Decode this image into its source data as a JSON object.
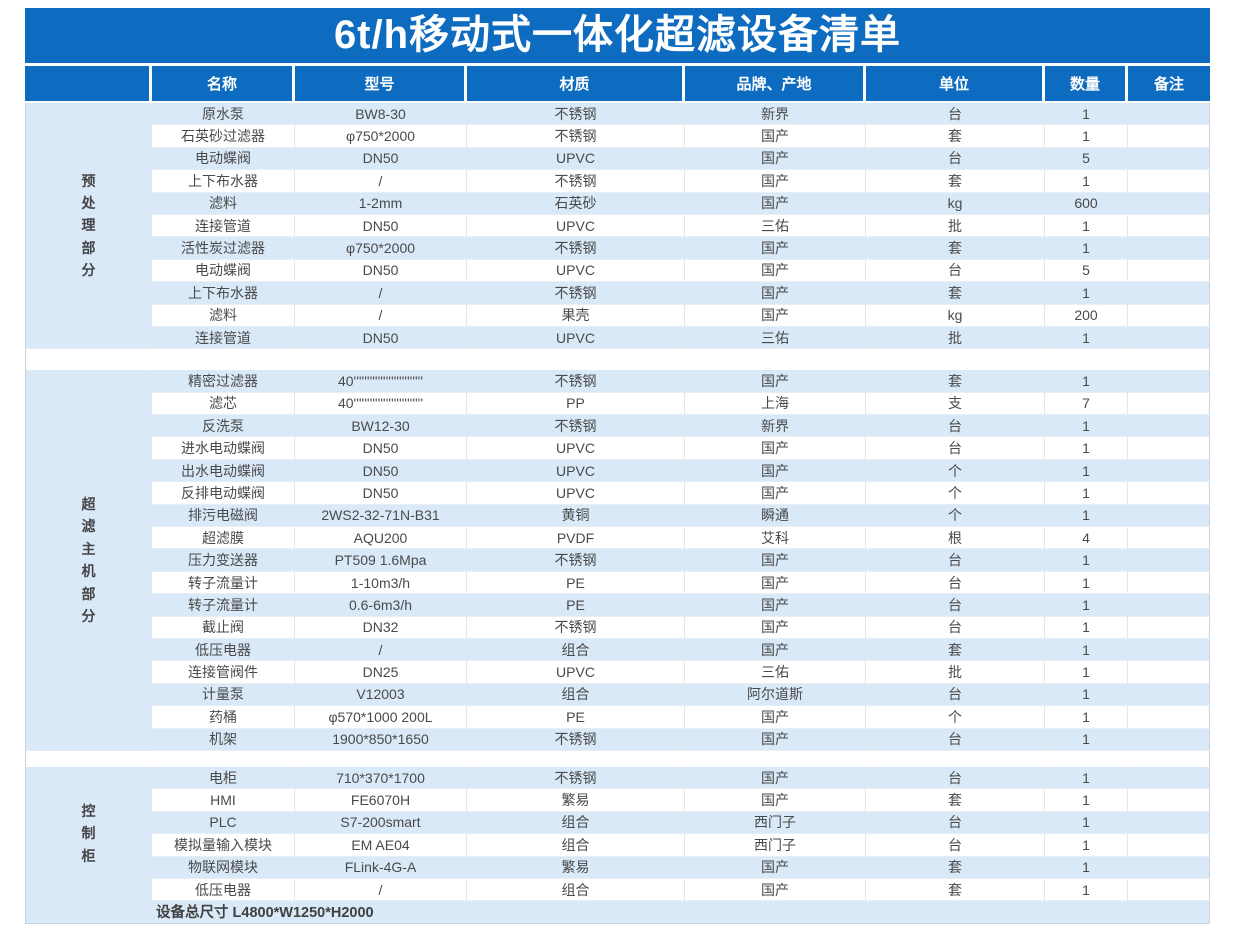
{
  "title": "6t/h移动式一体化超滤设备清单",
  "columns": [
    "名称",
    "型号",
    "材质",
    "品牌、产地",
    "单位",
    "数量",
    "备注"
  ],
  "sections": [
    {
      "label": "预处理部分",
      "rows": [
        [
          "原水泵",
          "BW8-30",
          "不锈钢",
          "新界",
          "台",
          "1",
          ""
        ],
        [
          "石英砂过滤器",
          "φ750*2000",
          "不锈钢",
          "国产",
          "套",
          "1",
          ""
        ],
        [
          "电动蝶阀",
          "DN50",
          "UPVC",
          "国产",
          "台",
          "5",
          ""
        ],
        [
          "上下布水器",
          "/",
          "不锈钢",
          "国产",
          "套",
          "1",
          ""
        ],
        [
          "滤料",
          "1-2mm",
          "石英砂",
          "国产",
          "kg",
          "600",
          ""
        ],
        [
          "连接管道",
          "DN50",
          "UPVC",
          "三佑",
          "批",
          "1",
          ""
        ],
        [
          "活性炭过滤器",
          "φ750*2000",
          "不锈钢",
          "国产",
          "套",
          "1",
          ""
        ],
        [
          "电动蝶阀",
          "DN50",
          "UPVC",
          "国产",
          "台",
          "5",
          ""
        ],
        [
          "上下布水器",
          "/",
          "不锈钢",
          "国产",
          "套",
          "1",
          ""
        ],
        [
          "滤料",
          "/",
          "果壳",
          "国产",
          "kg",
          "200",
          ""
        ],
        [
          "连接管道",
          "DN50",
          "UPVC",
          "三佑",
          "批",
          "1",
          ""
        ]
      ]
    },
    {
      "label": "超滤主机部分",
      "rows": [
        [
          "精密过滤器",
          "40''''''''''''''''''''''''''",
          "不锈钢",
          "国产",
          "套",
          "1",
          ""
        ],
        [
          "滤芯",
          "40''''''''''''''''''''''''''",
          "PP",
          "上海",
          "支",
          "7",
          ""
        ],
        [
          "反洗泵",
          "BW12-30",
          "不锈钢",
          "新界",
          "台",
          "1",
          ""
        ],
        [
          "进水电动蝶阀",
          "DN50",
          "UPVC",
          "国产",
          "台",
          "1",
          ""
        ],
        [
          "出水电动蝶阀",
          "DN50",
          "UPVC",
          "国产",
          "个",
          "1",
          ""
        ],
        [
          "反排电动蝶阀",
          "DN50",
          "UPVC",
          "国产",
          "个",
          "1",
          ""
        ],
        [
          "排污电磁阀",
          "2WS2-32-71N-B31",
          "黄铜",
          "瞬通",
          "个",
          "1",
          ""
        ],
        [
          "超滤膜",
          "AQU200",
          "PVDF",
          "艾科",
          "根",
          "4",
          ""
        ],
        [
          "压力变送器",
          "PT509 1.6Mpa",
          "不锈钢",
          "国产",
          "台",
          "1",
          ""
        ],
        [
          "转子流量计",
          "1-10m3/h",
          "PE",
          "国产",
          "台",
          "1",
          ""
        ],
        [
          "转子流量计",
          "0.6-6m3/h",
          "PE",
          "国产",
          "台",
          "1",
          ""
        ],
        [
          "截止阀",
          "DN32",
          "不锈钢",
          "国产",
          "台",
          "1",
          ""
        ],
        [
          "低压电器",
          "/",
          "组合",
          "国产",
          "套",
          "1",
          ""
        ],
        [
          "连接管阀件",
          "DN25",
          "UPVC",
          "三佑",
          "批",
          "1",
          ""
        ],
        [
          "计量泵",
          "V12003",
          "组合",
          "阿尔道斯",
          "台",
          "1",
          ""
        ],
        [
          "药桶",
          "φ570*1000 200L",
          "PE",
          "国产",
          "个",
          "1",
          ""
        ],
        [
          "机架",
          "1900*850*1650",
          "不锈钢",
          "国产",
          "台",
          "1",
          ""
        ]
      ]
    },
    {
      "label": "控制柜",
      "rows": [
        [
          "电柜",
          "710*370*1700",
          "不锈钢",
          "国产",
          "台",
          "1",
          ""
        ],
        [
          "HMI",
          "FE6070H",
          "繁易",
          "国产",
          "套",
          "1",
          ""
        ],
        [
          "PLC",
          "S7-200smart",
          "组合",
          "西门子",
          "台",
          "1",
          ""
        ],
        [
          "模拟量输入模块",
          "EM AE04",
          "组合",
          "西门子",
          "台",
          "1",
          ""
        ],
        [
          "物联网模块",
          "FLink-4G-A",
          "繁易",
          "国产",
          "套",
          "1",
          ""
        ],
        [
          "低压电器",
          "/",
          "组合",
          "国产",
          "套",
          "1",
          ""
        ]
      ]
    }
  ],
  "footer": "设备总尺寸 L4800*W1250*H2000",
  "colors": {
    "brand_blue": "#0d6cbf",
    "row_alt_blue": "#d9e9f8",
    "body_text": "#4a4a4a"
  }
}
